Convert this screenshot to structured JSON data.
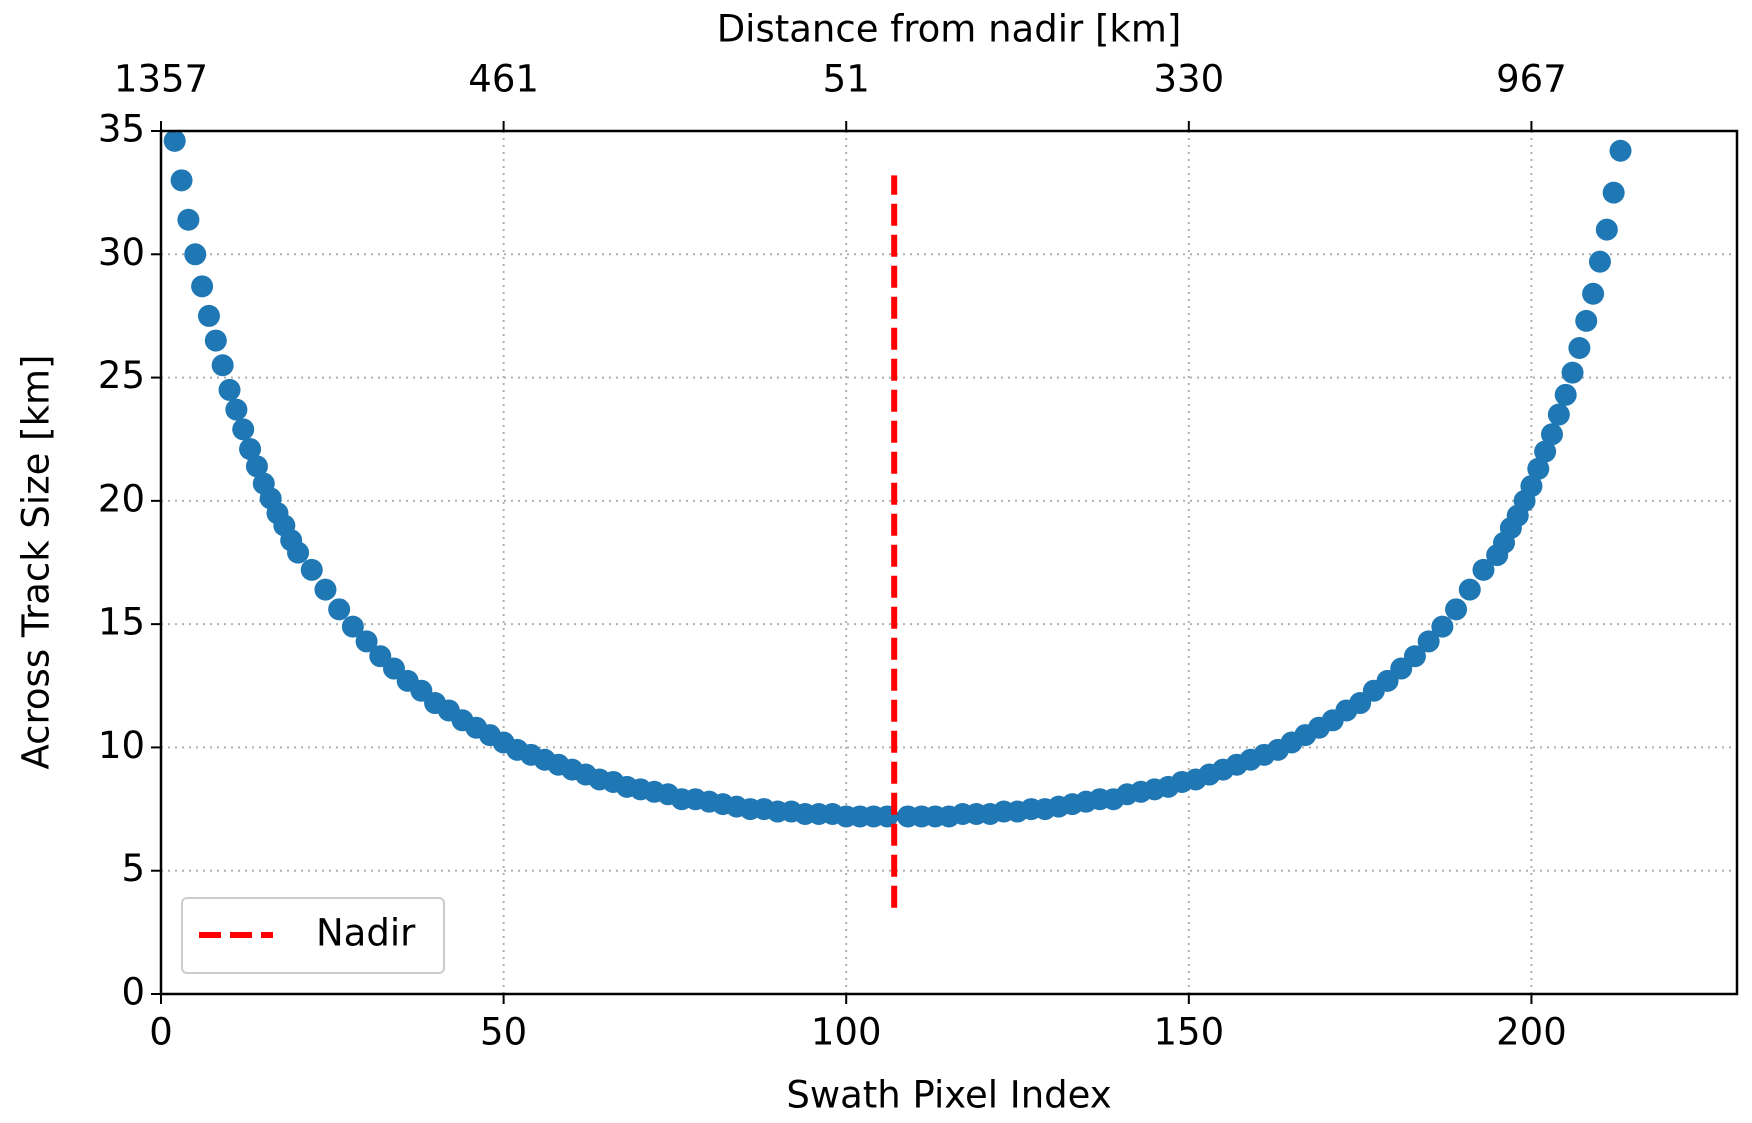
{
  "chart_data": {
    "type": "scatter",
    "xlabel": "Swath Pixel Index",
    "ylabel": "Across Track Size [km]",
    "x2label": "Distance from nadir [km]",
    "xlim": [
      0,
      230
    ],
    "ylim": [
      0,
      35
    ],
    "xticks": [
      0,
      50,
      100,
      150,
      200
    ],
    "yticks": [
      0,
      5,
      10,
      15,
      20,
      25,
      30,
      35
    ],
    "x2ticks": [
      {
        "value": 0,
        "label": "1357"
      },
      {
        "value": 50,
        "label": "461"
      },
      {
        "value": 100,
        "label": "51"
      },
      {
        "value": 150,
        "label": "330"
      },
      {
        "value": 200,
        "label": "967"
      }
    ],
    "grid": true,
    "legend": "lower left",
    "series": [
      {
        "color": "#1f77b4",
        "x": [
          2,
          3,
          4,
          5,
          6,
          7,
          8,
          9,
          10,
          11,
          12,
          13,
          14,
          15,
          16,
          17,
          18,
          19,
          20,
          22,
          24,
          26,
          28,
          30,
          32,
          34,
          36,
          38,
          40,
          42,
          44,
          46,
          48,
          50,
          52,
          54,
          56,
          58,
          60,
          62,
          64,
          66,
          68,
          70,
          72,
          74,
          76,
          78,
          80,
          82,
          84,
          86,
          88,
          90,
          92,
          94,
          96,
          98,
          100,
          102,
          104,
          106,
          109,
          111,
          113,
          115,
          117,
          119,
          121,
          123,
          125,
          127,
          129,
          131,
          133,
          135,
          137,
          139,
          141,
          143,
          145,
          147,
          149,
          151,
          153,
          155,
          157,
          159,
          161,
          163,
          165,
          167,
          169,
          171,
          173,
          175,
          177,
          179,
          181,
          183,
          185,
          187,
          189,
          191,
          193,
          195,
          196,
          197,
          198,
          199,
          200,
          201,
          202,
          203,
          204,
          205,
          206,
          207,
          208,
          209,
          210,
          211,
          212,
          213
        ],
        "values": [
          34.6,
          33.0,
          31.4,
          30.0,
          28.7,
          27.5,
          26.5,
          25.5,
          24.5,
          23.7,
          22.9,
          22.1,
          21.4,
          20.7,
          20.1,
          19.5,
          19.0,
          18.4,
          17.9,
          17.2,
          16.4,
          15.6,
          14.9,
          14.3,
          13.7,
          13.2,
          12.7,
          12.3,
          11.8,
          11.5,
          11.1,
          10.8,
          10.5,
          10.2,
          9.9,
          9.7,
          9.5,
          9.3,
          9.1,
          8.9,
          8.7,
          8.6,
          8.4,
          8.3,
          8.2,
          8.1,
          7.9,
          7.9,
          7.8,
          7.7,
          7.6,
          7.5,
          7.5,
          7.4,
          7.4,
          7.3,
          7.3,
          7.3,
          7.2,
          7.2,
          7.2,
          7.2,
          7.2,
          7.2,
          7.2,
          7.2,
          7.3,
          7.3,
          7.3,
          7.4,
          7.4,
          7.5,
          7.5,
          7.6,
          7.7,
          7.8,
          7.9,
          7.9,
          8.1,
          8.2,
          8.3,
          8.4,
          8.6,
          8.7,
          8.9,
          9.1,
          9.3,
          9.5,
          9.7,
          9.9,
          10.2,
          10.5,
          10.8,
          11.1,
          11.5,
          11.8,
          12.3,
          12.7,
          13.2,
          13.7,
          14.3,
          14.9,
          15.6,
          16.4,
          17.2,
          17.8,
          18.3,
          18.9,
          19.4,
          20.0,
          20.6,
          21.3,
          22.0,
          22.7,
          23.5,
          24.3,
          25.2,
          26.2,
          27.3,
          28.4,
          29.7,
          31.0,
          32.5,
          34.2
        ]
      },
      {
        "type": "line",
        "name": "Nadir",
        "color": "#ff0000",
        "linestyle": "dashed",
        "x": [
          107,
          107
        ],
        "values": [
          3.5,
          33.2
        ]
      }
    ]
  }
}
